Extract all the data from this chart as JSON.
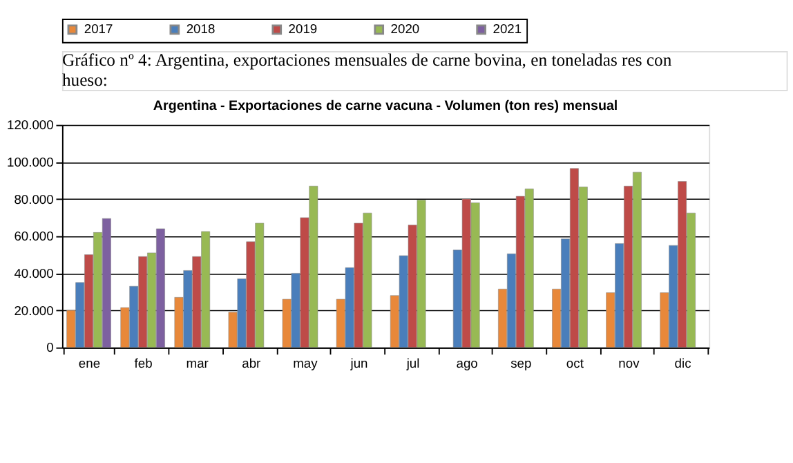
{
  "chart_data": {
    "type": "bar",
    "title": "Argentina - Exportaciones de carne vacuna - Volumen (ton res) mensual",
    "annotations": [
      "Gráfico nº 4: Argentina, exportaciones mensuales de carne bovina, en toneladas res con hueso:"
    ],
    "categories": [
      "ene",
      "feb",
      "mar",
      "abr",
      "may",
      "jun",
      "jul",
      "ago",
      "sep",
      "oct",
      "nov",
      "dic"
    ],
    "series": [
      {
        "name": "2017",
        "color": "#e8883a",
        "values": [
          20000,
          21500,
          27000,
          19000,
          26000,
          26000,
          28000,
          null,
          31500,
          31500,
          29500,
          29500
        ]
      },
      {
        "name": "2018",
        "color": "#4a7ebb",
        "values": [
          35000,
          33000,
          41500,
          37000,
          40000,
          43000,
          49500,
          52500,
          50500,
          58500,
          56000,
          55000
        ]
      },
      {
        "name": "2019",
        "color": "#be4b48",
        "values": [
          50000,
          49000,
          49000,
          57000,
          70000,
          67000,
          66000,
          80000,
          81500,
          96500,
          87000,
          89500
        ]
      },
      {
        "name": "2020",
        "color": "#98b954",
        "values": [
          62000,
          51000,
          62500,
          67000,
          87000,
          72500,
          79500,
          78000,
          85500,
          86500,
          94500,
          72500
        ]
      },
      {
        "name": "2021",
        "color": "#7d60a0",
        "values": [
          69500,
          64000,
          null,
          null,
          null,
          null,
          null,
          null,
          null,
          null,
          null,
          null
        ]
      }
    ],
    "ylim": [
      0,
      120000
    ],
    "yticks": [
      {
        "value": 0,
        "label": "0"
      },
      {
        "value": 20000,
        "label": "20.000"
      },
      {
        "value": 40000,
        "label": "40.000"
      },
      {
        "value": 60000,
        "label": "60.000"
      },
      {
        "value": 80000,
        "label": "80.000"
      },
      {
        "value": 100000,
        "label": "100.000"
      },
      {
        "value": 120000,
        "label": "120.000"
      }
    ],
    "grid": "y",
    "legend": "top"
  }
}
